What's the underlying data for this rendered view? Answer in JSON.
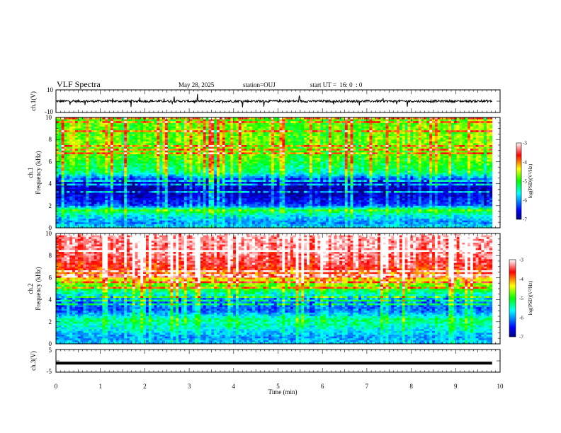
{
  "header": {
    "title": "VLF Spectra",
    "date": "May 28, 2025",
    "station": "station=OUJ",
    "start_ut": "start UT =  16: 0  : 0"
  },
  "chart_data": [
    {
      "type": "line",
      "name": "ch1-waveform",
      "ylabel": "ch.1(V)",
      "ytick_labels": [
        "10",
        "-10"
      ],
      "ylim": [
        -10,
        10
      ],
      "xlim": [
        0,
        10
      ],
      "baseline": 0.0,
      "noise_amplitude": 1.0,
      "color": "#000000"
    },
    {
      "type": "heatmap",
      "name": "ch1-spectrogram",
      "ylabel": "ch.1",
      "ylabel2": "Frequency (kHz)",
      "ytick_labels": [
        "0",
        "2",
        "4",
        "6",
        "8",
        "10"
      ],
      "ylim": [
        0,
        10
      ],
      "xlim": [
        0,
        9.82
      ],
      "colorbar": {
        "label": "log(PSD)(V²/Hz)",
        "tick_labels": [
          "-3",
          "-4",
          "-5",
          "-6",
          "-7"
        ],
        "range": [
          -7,
          -3
        ]
      },
      "profile": [
        {
          "f": 0.0,
          "v": -5.7
        },
        {
          "f": 0.5,
          "v": -6.1
        },
        {
          "f": 1.2,
          "v": -5.6
        },
        {
          "f": 1.6,
          "v": -5.0
        },
        {
          "f": 2.0,
          "v": -6.3
        },
        {
          "f": 2.6,
          "v": -6.6
        },
        {
          "f": 3.4,
          "v": -6.9
        },
        {
          "f": 4.2,
          "v": -6.7
        },
        {
          "f": 5.0,
          "v": -5.4
        },
        {
          "f": 6.5,
          "v": -4.9
        },
        {
          "f": 8.0,
          "v": -4.8
        },
        {
          "f": 10.0,
          "v": -4.9
        }
      ]
    },
    {
      "type": "heatmap",
      "name": "ch2-spectrogram",
      "ylabel": "ch.2",
      "ylabel2": "Frequency (kHz)",
      "ytick_labels": [
        "0",
        "2",
        "4",
        "6",
        "8",
        "10"
      ],
      "ylim": [
        0,
        10
      ],
      "xlim": [
        0,
        9.82
      ],
      "colorbar": {
        "label": "log(PSD)(V²/Hz)",
        "tick_labels": [
          "-3",
          "-4",
          "-5",
          "-6",
          "-7"
        ],
        "range": [
          -7,
          -3
        ]
      },
      "profile": [
        {
          "f": 0.0,
          "v": -5.8
        },
        {
          "f": 0.6,
          "v": -6.0
        },
        {
          "f": 1.4,
          "v": -5.6
        },
        {
          "f": 2.2,
          "v": -5.3
        },
        {
          "f": 3.0,
          "v": -6.2
        },
        {
          "f": 4.0,
          "v": -6.1
        },
        {
          "f": 5.0,
          "v": -5.0
        },
        {
          "f": 6.0,
          "v": -4.2
        },
        {
          "f": 7.0,
          "v": -3.6
        },
        {
          "f": 8.5,
          "v": -3.3
        },
        {
          "f": 10.0,
          "v": -3.2
        }
      ]
    },
    {
      "type": "line",
      "name": "ch3-waveform",
      "ylabel": "ch.3(V)",
      "ytick_labels": [
        "5",
        "-5"
      ],
      "ylim": [
        -5,
        5
      ],
      "xlim": [
        0,
        10
      ],
      "baseline": -1.0,
      "color": "#000000"
    }
  ],
  "x_axis": {
    "label": "Time (min)",
    "tick_labels": [
      "0",
      "1",
      "2",
      "3",
      "4",
      "5",
      "6",
      "7",
      "8",
      "9",
      "10"
    ],
    "range": [
      0,
      10
    ]
  }
}
